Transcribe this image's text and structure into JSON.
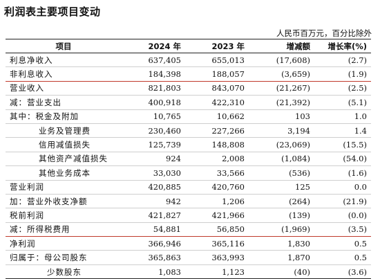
{
  "title": "利润表主要项目变动",
  "unit": "人民币百万元，百分比除外",
  "columns": {
    "item": "项目",
    "y2024": "2024 年",
    "y2023": "2023 年",
    "change": "增减额",
    "growth": "增长率(%)"
  },
  "rows": [
    {
      "label": "利息净收入",
      "y2024": "637,405",
      "y2023": "655,013",
      "change": "(17,608)",
      "growth": "(2.7)"
    },
    {
      "label": "非利息收入",
      "y2024": "184,398",
      "y2023": "188,057",
      "change": "(3,659)",
      "growth": "(1.9)"
    },
    {
      "label": "营业收入",
      "y2024": "821,803",
      "y2023": "843,070",
      "change": "(21,267)",
      "growth": "(2.5)"
    },
    {
      "label": "减：营业支出",
      "y2024": "400,918",
      "y2023": "422,310",
      "change": "(21,392)",
      "growth": "(5.1)"
    },
    {
      "label": "其中：税金及附加",
      "y2024": "10,765",
      "y2023": "10,662",
      "change": "103",
      "growth": "1.0"
    },
    {
      "label": "业务及管理费",
      "y2024": "230,460",
      "y2023": "227,266",
      "change": "3,194",
      "growth": "1.4"
    },
    {
      "label": "信用减值损失",
      "y2024": "125,739",
      "y2023": "148,808",
      "change": "(23,069)",
      "growth": "(15.5)"
    },
    {
      "label": "其他资产减值损失",
      "y2024": "924",
      "y2023": "2,008",
      "change": "(1,084)",
      "growth": "(54.0)"
    },
    {
      "label": "其他业务成本",
      "y2024": "33,030",
      "y2023": "33,566",
      "change": "(536)",
      "growth": "(1.6)"
    },
    {
      "label": "营业利润",
      "y2024": "420,885",
      "y2023": "420,760",
      "change": "125",
      "growth": "0.0"
    },
    {
      "label": "加：营业外收支净额",
      "y2024": "942",
      "y2023": "1,206",
      "change": "(264)",
      "growth": "(21.9)"
    },
    {
      "label": "税前利润",
      "y2024": "421,827",
      "y2023": "421,966",
      "change": "(139)",
      "growth": "(0.0)"
    },
    {
      "label": "减：所得税费用",
      "y2024": "54,881",
      "y2023": "56,850",
      "change": "(1,969)",
      "growth": "(3.5)"
    },
    {
      "label": "净利润",
      "y2024": "366,946",
      "y2023": "365,116",
      "change": "1,830",
      "growth": "0.5"
    },
    {
      "label": "归属于：母公司股东",
      "y2024": "365,863",
      "y2023": "363,993",
      "change": "1,870",
      "growth": "0.5"
    },
    {
      "label": "少数股东",
      "y2024": "1,083",
      "y2023": "1,123",
      "change": "(40)",
      "growth": "(3.6)"
    }
  ]
}
